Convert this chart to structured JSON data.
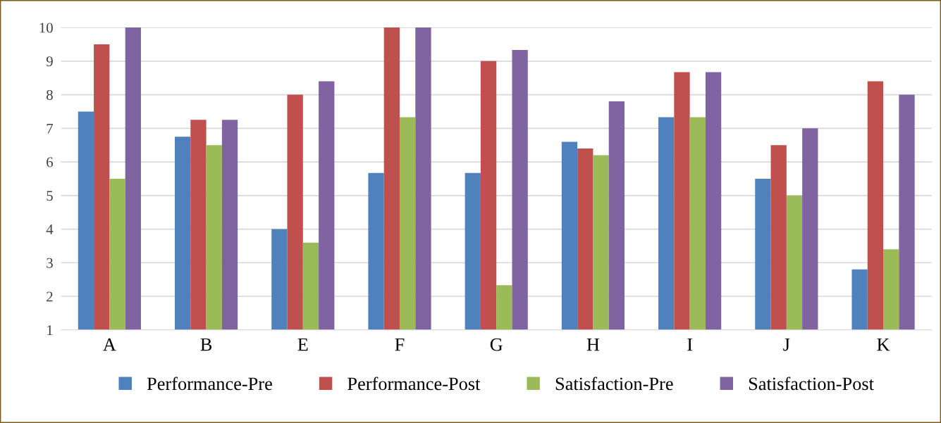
{
  "chart_data": {
    "type": "bar",
    "categories": [
      "A",
      "B",
      "E",
      "F",
      "G",
      "H",
      "I",
      "J",
      "K"
    ],
    "series": [
      {
        "name": "Performance-Pre",
        "color": "#4f81bd",
        "values": [
          7.5,
          6.75,
          4,
          5.67,
          5.67,
          6.6,
          7.33,
          5.5,
          2.8
        ]
      },
      {
        "name": "Performance-Post",
        "color": "#c0504d",
        "values": [
          9.5,
          7.25,
          8,
          10,
          9,
          6.4,
          8.67,
          6.5,
          8.4
        ]
      },
      {
        "name": "Satisfaction-Pre",
        "color": "#9bbb59",
        "values": [
          5.5,
          6.5,
          3.6,
          7.33,
          2.33,
          6.2,
          7.33,
          5,
          3.4
        ]
      },
      {
        "name": "Satisfaction-Post",
        "color": "#8064a2",
        "values": [
          10,
          7.25,
          8.4,
          10,
          9.33,
          7.8,
          8.67,
          7,
          8
        ]
      }
    ],
    "ylim": [
      1,
      10
    ],
    "yticks": [
      1,
      2,
      3,
      4,
      5,
      6,
      7,
      8,
      9,
      10
    ],
    "grid": "y",
    "legend": "bottom"
  }
}
